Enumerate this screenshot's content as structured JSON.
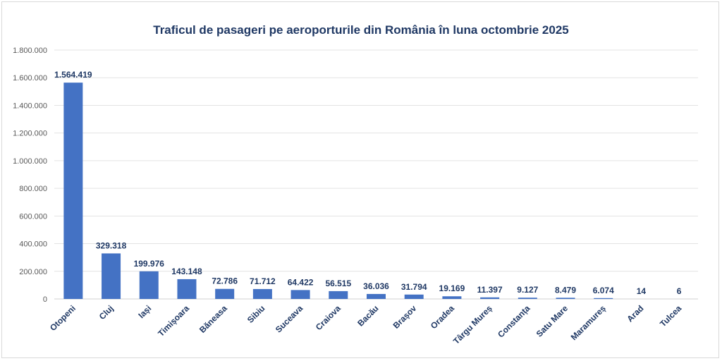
{
  "chart_data": {
    "type": "bar",
    "title": "Traficul de pasageri pe aeroporturile din România în luna octombrie 2025",
    "xlabel": "",
    "ylabel": "",
    "categories": [
      "Otopeni",
      "Cluj",
      "Iași",
      "Timișoara",
      "Băneasa",
      "Sibiu",
      "Suceava",
      "Craiova",
      "Bacău",
      "Brașov",
      "Oradea",
      "Târgu Mureș",
      "Constanța",
      "Satu Mare",
      "Maramureș",
      "Arad",
      "Tulcea"
    ],
    "values": [
      1564419,
      329318,
      199976,
      143148,
      72786,
      71712,
      64422,
      56515,
      36036,
      31794,
      19169,
      11397,
      9127,
      8479,
      6074,
      14,
      6
    ],
    "value_labels": [
      "1.564.419",
      "329.318",
      "199.976",
      "143.148",
      "72.786",
      "71.712",
      "64.422",
      "56.515",
      "36.036",
      "31.794",
      "19.169",
      "11.397",
      "9.127",
      "8.479",
      "6.074",
      "14",
      "6"
    ],
    "ylim": [
      0,
      1800000
    ],
    "yticks": [
      0,
      200000,
      400000,
      600000,
      800000,
      1000000,
      1200000,
      1400000,
      1600000,
      1800000
    ],
    "ytick_labels": [
      "0",
      "200.000",
      "400.000",
      "600.000",
      "800.000",
      "1.000.000",
      "1.200.000",
      "1.400.000",
      "1.600.000",
      "1.800.000"
    ],
    "grid": true,
    "legend": "none",
    "colors": {
      "bar": "#4472c4",
      "text": "#1f3864",
      "grid": "#e3e3e3"
    }
  }
}
